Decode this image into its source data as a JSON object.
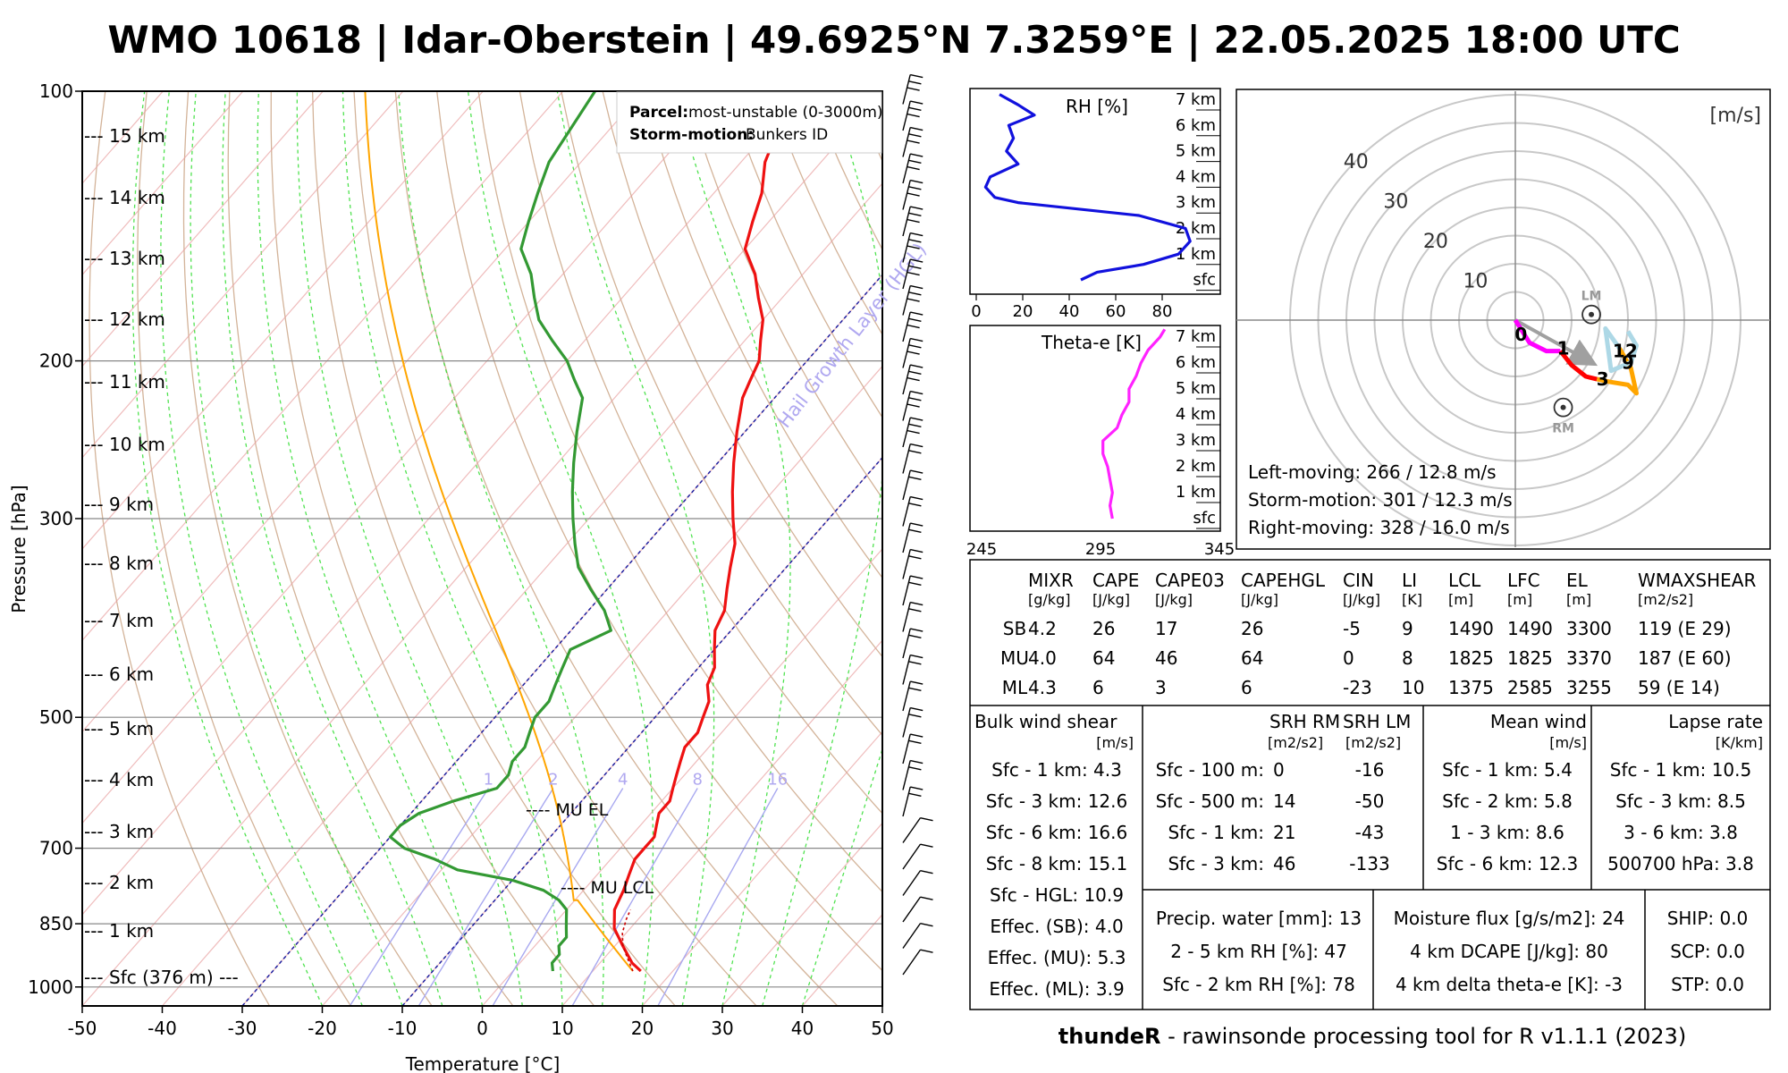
{
  "title": "WMO 10618 | Idar-Oberstein | 49.6925°N 7.3259°E | 22.05.2025 18:00 UTC",
  "footer": {
    "brand": "thundeR",
    "text": " - rawinsonde processing tool for R v1.1.1 (2023)"
  },
  "skewt": {
    "xlabel": "Temperature [°C]",
    "ylabel": "Pressure [hPa]",
    "x_ticks": [
      -50,
      -40,
      -30,
      -20,
      -10,
      0,
      10,
      20,
      30,
      40,
      50
    ],
    "p_ticks": [
      100,
      200,
      300,
      500,
      700,
      850,
      1000
    ],
    "height_labels": [
      {
        "p": 119,
        "text": "15 km"
      },
      {
        "p": 133,
        "text": "14 km"
      },
      {
        "p": 148,
        "text": "13 km"
      },
      {
        "p": 165,
        "text": "12 km"
      },
      {
        "p": 185,
        "text": "11 km"
      },
      {
        "p": 206,
        "text": "10 km"
      },
      {
        "p": 230,
        "text": "9 km"
      },
      {
        "p": 258,
        "text": "8 km"
      },
      {
        "p": 291,
        "text": "7 km"
      },
      {
        "p": 328,
        "text": "6 km"
      },
      {
        "p": 370,
        "text": "5 km"
      },
      {
        "p": 417,
        "text": "4 km"
      },
      {
        "p": 471,
        "text": "3 km"
      },
      {
        "p": 532,
        "text": "2 km"
      },
      {
        "p": 600,
        "text": "1 km"
      },
      {
        "p": 672,
        "text": "Sfc (376 m) ---"
      }
    ],
    "mixing_labels": [
      "1",
      "2",
      "4",
      "8",
      "16"
    ],
    "hgl_label": "Hail Growth Layer (HGL)",
    "mu_el_label": "---- MU EL",
    "mu_lcl_label": "---- MU LCL",
    "legend": {
      "parcel_key": "Parcel:",
      "parcel_val": "most-unstable (0-3000m)",
      "storm_key": "Storm-motion:",
      "storm_val": "Bunkers ID"
    },
    "temperature": [
      [
        960,
        16
      ],
      [
        940,
        14
      ],
      [
        900,
        11
      ],
      [
        860,
        8
      ],
      [
        820,
        6
      ],
      [
        780,
        5
      ],
      [
        750,
        4
      ],
      [
        720,
        3
      ],
      [
        700,
        3
      ],
      [
        680,
        3
      ],
      [
        660,
        2
      ],
      [
        640,
        1
      ],
      [
        620,
        1
      ],
      [
        600,
        0
      ],
      [
        580,
        -1
      ],
      [
        560,
        -2
      ],
      [
        540,
        -3
      ],
      [
        520,
        -3
      ],
      [
        500,
        -4
      ],
      [
        480,
        -5
      ],
      [
        460,
        -7
      ],
      [
        440,
        -8
      ],
      [
        420,
        -10
      ],
      [
        400,
        -12
      ],
      [
        380,
        -13
      ],
      [
        360,
        -15
      ],
      [
        340,
        -17
      ],
      [
        320,
        -19
      ],
      [
        300,
        -22
      ],
      [
        280,
        -25
      ],
      [
        260,
        -28
      ],
      [
        240,
        -31
      ],
      [
        220,
        -34
      ],
      [
        210,
        -35
      ],
      [
        200,
        -36
      ],
      [
        190,
        -38
      ],
      [
        180,
        -40
      ],
      [
        170,
        -43
      ],
      [
        160,
        -46
      ],
      [
        150,
        -50
      ],
      [
        140,
        -52
      ],
      [
        130,
        -54
      ],
      [
        120,
        -57
      ],
      [
        110,
        -59
      ],
      [
        100,
        -60
      ]
    ],
    "dewpoint": [
      [
        960,
        5
      ],
      [
        940,
        4
      ],
      [
        920,
        4
      ],
      [
        900,
        3
      ],
      [
        880,
        3
      ],
      [
        860,
        2
      ],
      [
        840,
        1
      ],
      [
        820,
        0
      ],
      [
        800,
        -2
      ],
      [
        780,
        -5
      ],
      [
        760,
        -10
      ],
      [
        740,
        -18
      ],
      [
        720,
        -22
      ],
      [
        700,
        -27
      ],
      [
        680,
        -30
      ],
      [
        660,
        -30
      ],
      [
        640,
        -29
      ],
      [
        620,
        -26
      ],
      [
        600,
        -22
      ],
      [
        580,
        -22
      ],
      [
        560,
        -23
      ],
      [
        540,
        -23
      ],
      [
        520,
        -24
      ],
      [
        500,
        -25
      ],
      [
        480,
        -25
      ],
      [
        460,
        -26
      ],
      [
        440,
        -27
      ],
      [
        420,
        -28
      ],
      [
        400,
        -25
      ],
      [
        380,
        -28
      ],
      [
        360,
        -32
      ],
      [
        340,
        -36
      ],
      [
        320,
        -39
      ],
      [
        300,
        -42
      ],
      [
        280,
        -45
      ],
      [
        260,
        -48
      ],
      [
        240,
        -51
      ],
      [
        220,
        -54
      ],
      [
        210,
        -57
      ],
      [
        200,
        -60
      ],
      [
        190,
        -64
      ],
      [
        180,
        -68
      ],
      [
        170,
        -71
      ],
      [
        160,
        -74
      ],
      [
        150,
        -78
      ],
      [
        140,
        -80
      ],
      [
        130,
        -82
      ],
      [
        120,
        -84
      ],
      [
        100,
        -86
      ]
    ]
  },
  "rh_panel": {
    "label": "RH [%]",
    "ticks": [
      "0",
      "20",
      "40",
      "60",
      "80"
    ],
    "levels": [
      "7 km",
      "6 km",
      "5 km",
      "4 km",
      "3 km",
      "2 km",
      "1 km",
      "sfc"
    ],
    "profile": [
      [
        0,
        45
      ],
      [
        0.3,
        52
      ],
      [
        0.6,
        72
      ],
      [
        1.0,
        87
      ],
      [
        1.5,
        92
      ],
      [
        2.0,
        90
      ],
      [
        2.5,
        70
      ],
      [
        3.0,
        18
      ],
      [
        3.2,
        8
      ],
      [
        3.6,
        4
      ],
      [
        4.0,
        6
      ],
      [
        4.5,
        18
      ],
      [
        5.0,
        13
      ],
      [
        5.5,
        16
      ],
      [
        6.0,
        14
      ],
      [
        6.4,
        25
      ],
      [
        6.8,
        18
      ],
      [
        7.2,
        10
      ]
    ]
  },
  "theta_panel": {
    "label": "Theta-e [K]",
    "ticks": [
      "245",
      "295",
      "345"
    ],
    "levels": [
      "7 km",
      "6 km",
      "5 km",
      "4 km",
      "3 km",
      "2 km",
      "1 km",
      "sfc"
    ],
    "profile": [
      [
        0,
        300
      ],
      [
        0.5,
        299
      ],
      [
        1.0,
        300
      ],
      [
        1.5,
        299
      ],
      [
        2.0,
        298
      ],
      [
        2.5,
        296
      ],
      [
        3.0,
        296
      ],
      [
        3.5,
        302
      ],
      [
        4.0,
        304
      ],
      [
        4.5,
        307
      ],
      [
        5.0,
        307
      ],
      [
        5.5,
        310
      ],
      [
        6.0,
        312
      ],
      [
        6.5,
        315
      ],
      [
        7.0,
        320
      ],
      [
        7.3,
        322
      ]
    ]
  },
  "hodograph": {
    "unit": "[m/s]",
    "rings": [
      "10",
      "20",
      "30",
      "40"
    ],
    "lm_label": "LM",
    "rm_label": "RM",
    "lm": [
      2.7,
      0.2
    ],
    "rm": [
      1.7,
      -3.1
    ],
    "mean_arrow": [
      2.7,
      -1.5
    ],
    "segments": [
      {
        "color": "#ff00ff",
        "points": [
          [
            0,
            0
          ],
          [
            0.5,
            -0.8
          ],
          [
            1.1,
            -1.1
          ],
          [
            1.6,
            -1.1
          ]
        ]
      },
      {
        "color": "#ff0000",
        "points": [
          [
            1.6,
            -1.1
          ],
          [
            2.0,
            -1.6
          ],
          [
            2.5,
            -2.0
          ],
          [
            2.9,
            -2.1
          ]
        ]
      },
      {
        "color": "#ffa500",
        "points": [
          [
            2.9,
            -2.1
          ],
          [
            3.4,
            -2.2
          ],
          [
            4.0,
            -2.3
          ],
          [
            4.3,
            -2.6
          ],
          [
            4.1,
            -1.7
          ],
          [
            3.7,
            -1.0
          ]
        ]
      },
      {
        "color": "#add8e6",
        "points": [
          [
            3.7,
            -1.0
          ],
          [
            3.2,
            -0.3
          ],
          [
            3.4,
            -1.8
          ],
          [
            4.1,
            -1.5
          ],
          [
            4.3,
            -0.9
          ],
          [
            4.0,
            -0.4
          ]
        ]
      }
    ],
    "markers": [
      {
        "t": "0",
        "u": 0.2,
        "v": -0.5
      },
      {
        "t": "1",
        "u": 1.7,
        "v": -1.0
      },
      {
        "t": "3",
        "u": 3.1,
        "v": -2.1
      },
      {
        "t": "9",
        "u": 4.0,
        "v": -1.5
      },
      {
        "t": "12",
        "u": 3.9,
        "v": -1.1
      }
    ],
    "info": [
      "Left-moving: 266 / 12.8 m/s",
      "Storm-motion: 301 / 12.3 m/s",
      "Right-moving: 328 / 16.0 m/s"
    ]
  },
  "params_table": {
    "headers": [
      {
        "t": "MIXR",
        "u": "[g/kg]"
      },
      {
        "t": "CAPE",
        "u": "[J/kg]"
      },
      {
        "t": "CAPE03",
        "u": "[J/kg]"
      },
      {
        "t": "CAPEHGL",
        "u": "[J/kg]"
      },
      {
        "t": "CIN",
        "u": "[J/kg]"
      },
      {
        "t": "LI",
        "u": "[K]"
      },
      {
        "t": "LCL",
        "u": "[m]"
      },
      {
        "t": "LFC",
        "u": "[m]"
      },
      {
        "t": "EL",
        "u": "[m]"
      },
      {
        "t": "WMAXSHEAR",
        "u": "[m2/s2]"
      }
    ],
    "rows": [
      {
        "name": "SB",
        "vals": [
          "4.2",
          "26",
          "17",
          "26",
          "-5",
          "9",
          "1490",
          "1490",
          "3300",
          "119   (E 29)"
        ]
      },
      {
        "name": "MU",
        "vals": [
          "4.0",
          "64",
          "46",
          "64",
          "0",
          "8",
          "1825",
          "1825",
          "3370",
          "187   (E 60)"
        ]
      },
      {
        "name": "ML",
        "vals": [
          "4.3",
          "6",
          "3",
          "6",
          "-23",
          "10",
          "1375",
          "2585",
          "3255",
          "59    (E 14)"
        ]
      }
    ]
  },
  "bulk_shear": {
    "title": "Bulk wind shear",
    "unit": "[m/s]",
    "rows": [
      "Sfc - 1 km: 4.3",
      "Sfc - 3 km: 12.6",
      "Sfc - 6 km: 16.6",
      "Sfc - 8 km: 15.1",
      "Sfc - HGL: 10.9",
      "Effec. (SB): 4.0",
      "Effec. (MU): 5.3",
      "Effec. (ML): 3.9"
    ]
  },
  "srh": {
    "title_rm": "SRH RM",
    "title_lm": "SRH LM",
    "unit": "[m2/s2]",
    "unit2": "[m2/s2]",
    "rows": [
      {
        "k": "Sfc - 100 m:",
        "rm": "0",
        "lm": "-16"
      },
      {
        "k": "Sfc - 500 m:",
        "rm": "14",
        "lm": "-50"
      },
      {
        "k": "Sfc - 1 km:",
        "rm": "21",
        "lm": "-43"
      },
      {
        "k": "Sfc - 3 km:",
        "rm": "46",
        "lm": "-133"
      }
    ]
  },
  "mean_wind": {
    "title": "Mean wind",
    "unit": "[m/s]",
    "rows": [
      "Sfc - 1 km: 5.4",
      "Sfc - 2 km: 5.8",
      "1 - 3 km: 8.6",
      "Sfc - 6 km: 12.3"
    ]
  },
  "lapse": {
    "title": "Lapse rate",
    "unit": "[K/km]",
    "rows": [
      "Sfc - 1 km: 10.5",
      "Sfc - 3 km: 8.5",
      "3 - 6 km: 3.8",
      "500700 hPa: 3.8"
    ]
  },
  "moisture1": {
    "rows": [
      "Precip. water [mm]: 13",
      "2 - 5 km RH [%]: 47",
      "Sfc - 2 km RH [%]: 78"
    ]
  },
  "moisture2": {
    "rows": [
      "Moisture flux [g/s/m2]: 24",
      "4 km DCAPE [J/kg]: 80",
      "4 km delta theta-e [K]: -3"
    ]
  },
  "composites": {
    "rows": [
      "SHIP: 0.0",
      "SCP: 0.0",
      "STP: 0.0"
    ]
  }
}
